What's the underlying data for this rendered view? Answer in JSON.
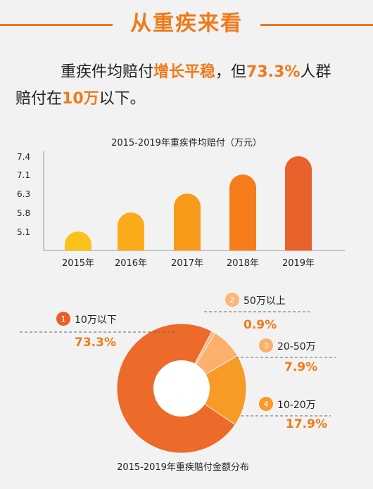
{
  "header": {
    "title": "从重疾来看"
  },
  "lead": {
    "part1": "重疾件均赔付",
    "highlight1": "增长平稳",
    "part2": "，但",
    "highlight2": "73.3%",
    "part3": "人群",
    "part4": "赔付在",
    "highlight3": "10万",
    "part5": "以下。"
  },
  "colors": {
    "accent": "#f07a1a",
    "bars": [
      "#fbc21a",
      "#f9ab1a",
      "#f89a1a",
      "#f47d1a",
      "#e8602a"
    ],
    "pie": [
      "#ec6a2a",
      "#fbb678",
      "#fbb06b",
      "#f89a26"
    ],
    "badges": [
      "#e8602a",
      "#fbb678",
      "#fbb06b",
      "#f89a26"
    ]
  },
  "chart_data": [
    {
      "type": "bar",
      "title": "2015-2019年重疾件均赔付（万元）",
      "categories": [
        "2015年",
        "2016年",
        "2017年",
        "2018年",
        "2019年"
      ],
      "values": [
        5.1,
        5.8,
        6.3,
        7.1,
        7.4
      ],
      "yticks": [
        "7.4",
        "7.1",
        "6.3",
        "5.8",
        "5.1"
      ]
    },
    {
      "type": "pie",
      "title": "2015-2019年重疾赔付金额分布",
      "slices": [
        {
          "badge": "1",
          "label": "10万以下",
          "value": 73.3,
          "value_label": "73.3%"
        },
        {
          "badge": "2",
          "label": "50万以上",
          "value": 0.9,
          "value_label": "0.9%"
        },
        {
          "badge": "3",
          "label": "20-50万",
          "value": 7.9,
          "value_label": "7.9%"
        },
        {
          "badge": "4",
          "label": "10-20万",
          "value": 17.9,
          "value_label": "17.9%"
        }
      ]
    }
  ]
}
